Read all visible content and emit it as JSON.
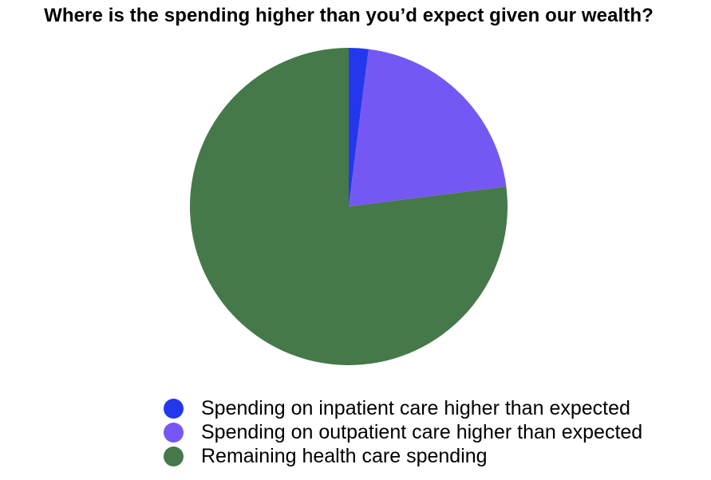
{
  "title": "Where is the spending higher than you’d expect given our wealth?",
  "chart_data": {
    "type": "pie",
    "labels": [
      "Spending on inpatient care higher than expected",
      "Spending on outpatient care higher than expected",
      "Remaining health care spending"
    ],
    "values": [
      2,
      21,
      77
    ],
    "colors": [
      "#2338ec",
      "#7558f3",
      "#45794a"
    ],
    "start_angle_deg": 0,
    "direction": "clockwise",
    "legend_position": "bottom",
    "data_labels_shown": false
  },
  "legend": {
    "items": [
      {
        "label": "Spending on inpatient care higher than expected",
        "color": "#2338ec"
      },
      {
        "label": "Spending on outpatient care higher than expected",
        "color": "#7558f3"
      },
      {
        "label": "Remaining health care spending",
        "color": "#45794a"
      }
    ]
  }
}
